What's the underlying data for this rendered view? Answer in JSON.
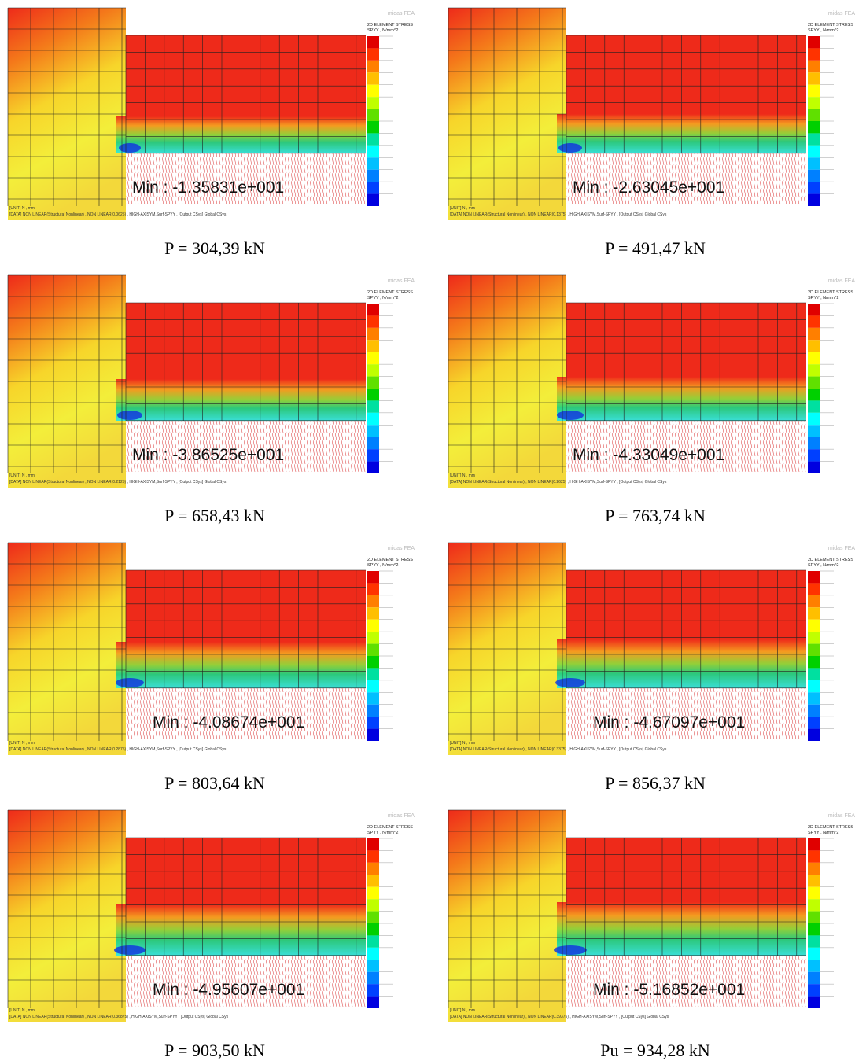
{
  "legend": {
    "title": "2D ELEMENT STRESS",
    "subtitle": "SPYY , N/mm^2",
    "logo": "midas FEA"
  },
  "unit": "[UNIT] N , mm",
  "panels": [
    {
      "min": "Min : -1.35831e+001",
      "caption": "P = 304,39 kN",
      "status": "[DATA] NON LINEAR(Structural Nonlinear) , NON LINEAR(0.0625) , HIGH-AXISYM,Surf-SPYY , [Output CSys] Global CSys"
    },
    {
      "min": "Min : -2.63045e+001",
      "caption": "P = 491,47 kN",
      "status": "[DATA] NON LINEAR(Structural Nonlinear) , NON LINEAR(0.1375) , HIGH-AXISYM,Surf-SPYY , [Output CSys] Global CSys"
    },
    {
      "min": "Min : -3.86525e+001",
      "caption": "P = 658,43 kN",
      "status": "[DATA] NON LINEAR(Structural Nonlinear) , NON LINEAR(0.2125) , HIGH-AXISYM,Surf-SPYY , [Output CSys] Global CSys"
    },
    {
      "min": "Min : -4.33049e+001",
      "caption": "P = 763,74 kN",
      "status": "[DATA] NON LINEAR(Structural Nonlinear) , NON LINEAR(0.2625) , HIGH-AXISYM,Surf-SPYY , [Output CSys] Global CSys"
    },
    {
      "min": "Min : -4.08674e+001",
      "caption": "P = 803,64 kN",
      "status": "[DATA] NON LINEAR(Structural Nonlinear) , NON LINEAR(0.2875) , HIGH-AXISYM,Surf-SPYY , [Output CSys] Global CSys"
    },
    {
      "min": "Min : -4.67097e+001",
      "caption": "P = 856,37 kN",
      "status": "[DATA] NON LINEAR(Structural Nonlinear) , NON LINEAR(0.3375) , HIGH-AXISYM,Surf-SPYY , [Output CSys] Global CSys"
    },
    {
      "min": "Min : -4.95607e+001",
      "caption": "P = 903,50 kN",
      "status": "[DATA] NON LINEAR(Structural Nonlinear) , NON LINEAR(0.36875) , HIGH-AXISYM,Surf-SPYY , [Output CSys] Global CSys"
    },
    {
      "min": "Min : -5.16852e+001",
      "caption": "Pu = 934,28 kN",
      "status": "[DATA] NON LINEAR(Structural Nonlinear) , NON LINEAR(0.39375) , HIGH-AXISYM,Surf-SPYY , [Output CSys] Global CSys"
    }
  ]
}
